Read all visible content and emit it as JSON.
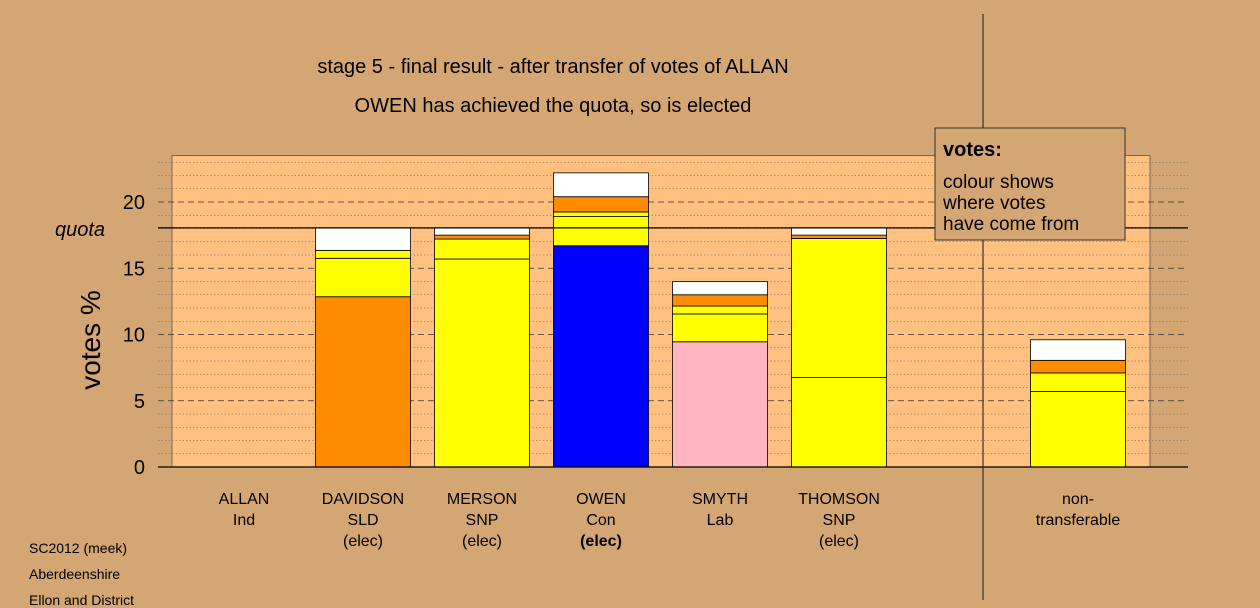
{
  "chart_data": {
    "type": "bar",
    "stacked": true,
    "title": "stage 5 - final result - after transfer of votes of ALLAN",
    "subtitle": "OWEN has achieved the quota, so is elected",
    "ylabel": "votes %",
    "ylim": [
      0,
      23.5
    ],
    "yticks": [
      0,
      5,
      10,
      15,
      20
    ],
    "quota": 18.05,
    "quota_label": "quota",
    "grid": true,
    "candidates": [
      {
        "name": "ALLAN",
        "party": "Ind",
        "status": "",
        "segments": []
      },
      {
        "name": "DAVIDSON",
        "party": "SLD",
        "status": "(elec)",
        "segments": [
          {
            "value": 12.85,
            "color": "#ff8c00"
          },
          {
            "value": 2.9,
            "color": "#ffff00"
          },
          {
            "value": 0.6,
            "color": "#ffff00"
          },
          {
            "value": 1.7,
            "color": "#ffffff"
          }
        ]
      },
      {
        "name": "MERSON",
        "party": "SNP",
        "status": "(elec)",
        "segments": [
          {
            "value": 15.7,
            "color": "#ffff00"
          },
          {
            "value": 1.5,
            "color": "#ffff00"
          },
          {
            "value": 0.3,
            "color": "#ff8c00"
          },
          {
            "value": 0.55,
            "color": "#ffffff"
          }
        ]
      },
      {
        "name": "OWEN",
        "party": "Con",
        "status": "(elec)",
        "status_bold": true,
        "segments": [
          {
            "value": 16.7,
            "color": "#0000ff"
          },
          {
            "value": 2.2,
            "color": "#ffff00"
          },
          {
            "value": 0.35,
            "color": "#ffff00"
          },
          {
            "value": 1.15,
            "color": "#ff8c00"
          },
          {
            "value": 1.8,
            "color": "#ffffff"
          }
        ]
      },
      {
        "name": "SMYTH",
        "party": "Lab",
        "status": "",
        "segments": [
          {
            "value": 9.45,
            "color": "#ffb6c1"
          },
          {
            "value": 2.1,
            "color": "#ffff00"
          },
          {
            "value": 0.6,
            "color": "#ffff00"
          },
          {
            "value": 0.85,
            "color": "#ff8c00"
          },
          {
            "value": 1.0,
            "color": "#ffffff"
          }
        ]
      },
      {
        "name": "THOMSON",
        "party": "SNP",
        "status": "(elec)",
        "segments": [
          {
            "value": 6.75,
            "color": "#ffff00"
          },
          {
            "value": 10.5,
            "color": "#ffff00"
          },
          {
            "value": 0.25,
            "color": "#ff8c00"
          },
          {
            "value": 0.55,
            "color": "#ffffff"
          }
        ]
      }
    ],
    "nontransferable": {
      "label_line1": "non-",
      "label_line2": "transferable",
      "segments": [
        {
          "value": 5.7,
          "color": "#ffff00"
        },
        {
          "value": 1.4,
          "color": "#ffff00"
        },
        {
          "value": 0.95,
          "color": "#ff8c00"
        },
        {
          "value": 1.55,
          "color": "#ffffff"
        }
      ]
    },
    "legend": {
      "title": "votes:",
      "lines": [
        "colour shows",
        "where votes",
        "have come from"
      ]
    }
  },
  "footer": {
    "line1": "SC2012 (meek)",
    "line2": "Aberdeenshire",
    "line3": "Ellon and District"
  },
  "colors": {
    "background": "#d4a673",
    "plot_panel": "#ffc080"
  }
}
